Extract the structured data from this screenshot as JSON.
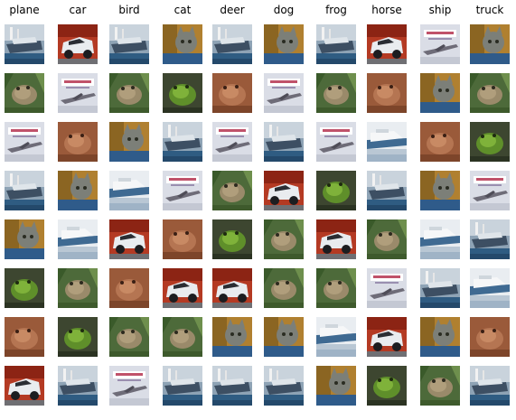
{
  "figure": {
    "classes": [
      "plane",
      "car",
      "bird",
      "cat",
      "deer",
      "dog",
      "frog",
      "horse",
      "ship",
      "truck"
    ],
    "rows": [
      [
        "ship",
        "car",
        "ship",
        "cat",
        "ship",
        "cat",
        "ship",
        "car",
        "plane",
        "cat"
      ],
      [
        "frog",
        "plane",
        "frog",
        "frog_green",
        "frog_red",
        "plane",
        "frog",
        "frog_red",
        "cat",
        "frog"
      ],
      [
        "plane",
        "frog_red",
        "cat",
        "ship",
        "plane",
        "ship",
        "plane",
        "ship_white",
        "frog_red",
        "frog_green"
      ],
      [
        "ship",
        "cat",
        "ship_white",
        "plane",
        "frog",
        "car",
        "frog_green",
        "ship",
        "cat",
        "plane"
      ],
      [
        "cat",
        "ship_white",
        "car",
        "frog_red",
        "frog_green",
        "frog",
        "car",
        "frog",
        "ship_white",
        "ship"
      ],
      [
        "frog_green",
        "frog",
        "frog_red",
        "car",
        "car",
        "frog",
        "frog",
        "plane",
        "ship",
        "ship_white"
      ],
      [
        "frog_red",
        "frog_green",
        "frog",
        "frog",
        "cat",
        "cat",
        "ship_white",
        "car",
        "cat",
        "frog_red"
      ],
      [
        "car",
        "ship",
        "plane",
        "ship",
        "ship",
        "ship",
        "cat",
        "frog_green",
        "frog",
        "ship"
      ]
    ]
  }
}
